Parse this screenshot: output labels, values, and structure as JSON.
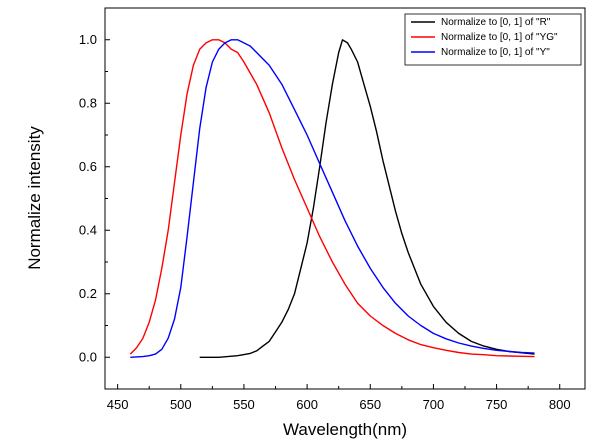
{
  "chart_data": {
    "type": "line",
    "title": "",
    "xlabel": "Wavelength(nm)",
    "ylabel": "Normalize intensity",
    "xlim": [
      440,
      820
    ],
    "ylim": [
      -0.1,
      1.1
    ],
    "xticks": [
      450,
      500,
      550,
      600,
      650,
      700,
      750,
      800
    ],
    "yticks": [
      0.0,
      0.2,
      0.4,
      0.6,
      0.8,
      1.0
    ],
    "xtick_labels": [
      "450",
      "500",
      "550",
      "600",
      "650",
      "700",
      "750",
      "800"
    ],
    "ytick_labels": [
      "0.0",
      "0.2",
      "0.4",
      "0.6",
      "0.8",
      "1.0"
    ],
    "grid": false,
    "legend_position": "top-right",
    "series": [
      {
        "name": "Normalize to [0, 1] of \"R\"",
        "color": "#000000",
        "x": [
          515,
          530,
          545,
          555,
          560,
          565,
          570,
          575,
          580,
          585,
          590,
          595,
          600,
          605,
          610,
          615,
          620,
          625,
          628,
          632,
          635,
          640,
          645,
          650,
          655,
          660,
          665,
          670,
          675,
          680,
          690,
          700,
          710,
          720,
          730,
          740,
          750,
          760,
          770,
          780
        ],
        "y": [
          0.0,
          0.0,
          0.005,
          0.012,
          0.02,
          0.035,
          0.05,
          0.08,
          0.11,
          0.15,
          0.2,
          0.28,
          0.36,
          0.47,
          0.6,
          0.74,
          0.86,
          0.96,
          1.0,
          0.99,
          0.97,
          0.93,
          0.86,
          0.79,
          0.71,
          0.62,
          0.54,
          0.46,
          0.39,
          0.33,
          0.23,
          0.16,
          0.11,
          0.075,
          0.05,
          0.035,
          0.025,
          0.018,
          0.014,
          0.01
        ]
      },
      {
        "name": "Normalize to [0, 1] of \"YG\"",
        "color": "#ff0000",
        "x": [
          460,
          465,
          470,
          475,
          480,
          485,
          490,
          495,
          500,
          505,
          510,
          515,
          520,
          525,
          530,
          535,
          540,
          545,
          550,
          560,
          570,
          580,
          590,
          600,
          610,
          620,
          630,
          640,
          650,
          660,
          670,
          680,
          690,
          700,
          710,
          720,
          730,
          740,
          750,
          760,
          770,
          780
        ],
        "y": [
          0.01,
          0.03,
          0.06,
          0.11,
          0.18,
          0.28,
          0.4,
          0.55,
          0.7,
          0.83,
          0.92,
          0.97,
          0.99,
          1.0,
          1.0,
          0.99,
          0.97,
          0.96,
          0.93,
          0.86,
          0.77,
          0.66,
          0.56,
          0.47,
          0.38,
          0.3,
          0.23,
          0.17,
          0.13,
          0.1,
          0.075,
          0.055,
          0.04,
          0.03,
          0.022,
          0.015,
          0.01,
          0.008,
          0.005,
          0.004,
          0.003,
          0.002
        ]
      },
      {
        "name": "Normalize to [0, 1] of \"Y\"",
        "color": "#0000ff",
        "x": [
          460,
          470,
          475,
          480,
          485,
          490,
          495,
          500,
          505,
          510,
          515,
          520,
          525,
          530,
          535,
          540,
          545,
          550,
          555,
          560,
          570,
          580,
          590,
          600,
          610,
          620,
          630,
          640,
          650,
          660,
          670,
          680,
          690,
          700,
          710,
          720,
          730,
          740,
          750,
          760,
          770,
          780
        ],
        "y": [
          0.0,
          0.002,
          0.005,
          0.01,
          0.025,
          0.06,
          0.12,
          0.22,
          0.38,
          0.55,
          0.72,
          0.85,
          0.93,
          0.97,
          0.99,
          1.0,
          1.0,
          0.99,
          0.98,
          0.96,
          0.92,
          0.86,
          0.78,
          0.7,
          0.61,
          0.52,
          0.43,
          0.35,
          0.28,
          0.22,
          0.17,
          0.13,
          0.1,
          0.075,
          0.058,
          0.045,
          0.035,
          0.028,
          0.022,
          0.018,
          0.015,
          0.013
        ]
      }
    ]
  }
}
